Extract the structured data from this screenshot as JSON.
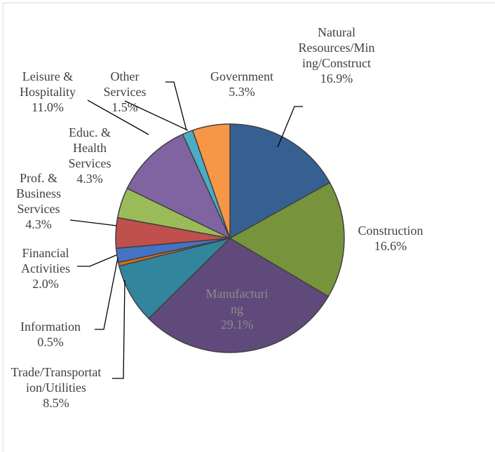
{
  "chart_data": {
    "type": "pie",
    "categories": [
      "Natural Resources/Mining/Construct",
      "Construction",
      "Manufacturing",
      "Trade/Transportation/Utilities",
      "Information",
      "Financial Activities",
      "Prof. & Business Services",
      "Educ. & Health Services",
      "Leisure & Hospitality",
      "Other Services",
      "Government"
    ],
    "values": [
      16.9,
      16.6,
      29.1,
      8.5,
      0.5,
      2.0,
      4.3,
      4.3,
      11.0,
      1.5,
      5.3
    ],
    "value_labels": [
      "16.9%",
      "16.6%",
      "29.1%",
      "8.5%",
      "0.5%",
      "2.0%",
      "4.3%",
      "4.3%",
      "11.0%",
      "1.5%",
      "5.3%"
    ],
    "colors": [
      "#376092",
      "#77933c",
      "#604a7b",
      "#31859c",
      "#e46c0a",
      "#4472c4",
      "#c0504d",
      "#9bbb59",
      "#8064a2",
      "#4bacc6",
      "#f79646"
    ]
  }
}
